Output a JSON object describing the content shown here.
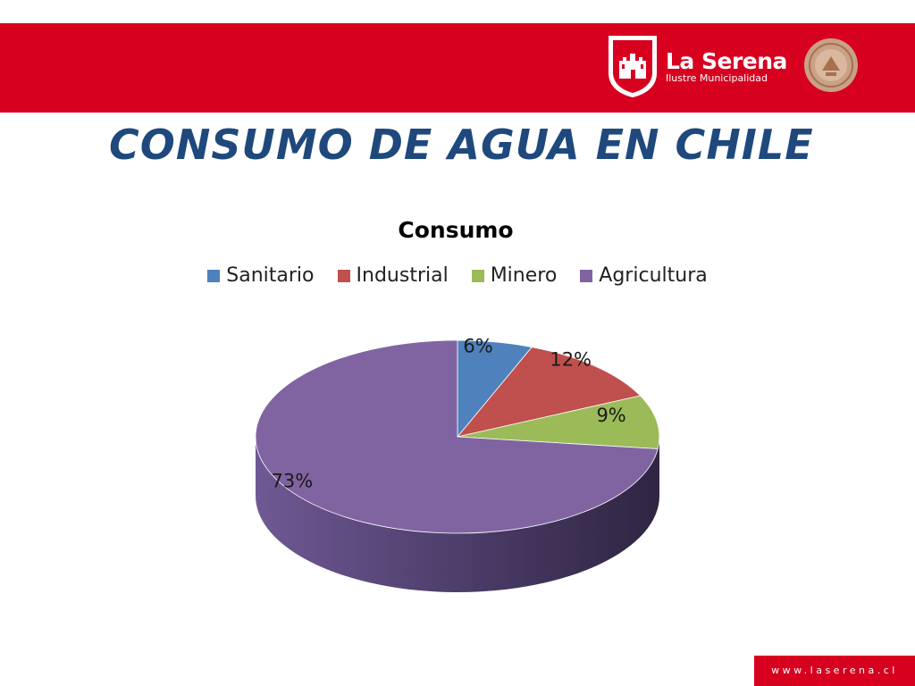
{
  "header": {
    "brand_name": "La Serena",
    "brand_sub": "Ilustre Municipalidad",
    "footer_url": "www.laserena.cl"
  },
  "slide": {
    "title": "CONSUMO DE AGUA EN CHILE"
  },
  "colors": {
    "banner": "#d8001f",
    "title": "#1f497d",
    "sanitario": "#4f81bd",
    "industrial": "#c0504d",
    "minero": "#9bbb59",
    "agricultura": "#8064a2"
  },
  "chart_data": {
    "type": "pie",
    "title": "Consumo",
    "legend_position": "top",
    "categories": [
      "Sanitario",
      "Industrial",
      "Minero",
      "Agricultura"
    ],
    "values": [
      6,
      12,
      9,
      73
    ],
    "labels": [
      "6%",
      "12%",
      "9%",
      "73%"
    ]
  }
}
